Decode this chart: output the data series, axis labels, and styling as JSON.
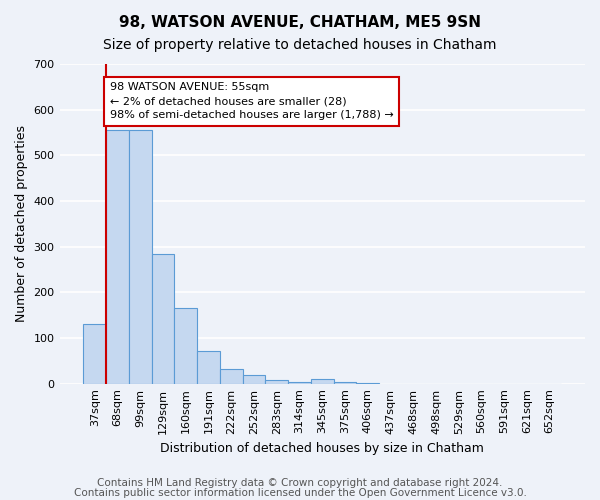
{
  "title": "98, WATSON AVENUE, CHATHAM, ME5 9SN",
  "subtitle": "Size of property relative to detached houses in Chatham",
  "xlabel": "Distribution of detached houses by size in Chatham",
  "ylabel": "Number of detached properties",
  "footer1": "Contains HM Land Registry data © Crown copyright and database right 2024.",
  "footer2": "Contains public sector information licensed under the Open Government Licence v3.0.",
  "bar_labels": [
    "37sqm",
    "68sqm",
    "99sqm",
    "129sqm",
    "160sqm",
    "191sqm",
    "222sqm",
    "252sqm",
    "283sqm",
    "314sqm",
    "345sqm",
    "375sqm",
    "406sqm",
    "437sqm",
    "468sqm",
    "498sqm",
    "529sqm",
    "560sqm",
    "591sqm",
    "621sqm",
    "652sqm"
  ],
  "bar_values": [
    130,
    555,
    555,
    283,
    165,
    72,
    33,
    20,
    8,
    4,
    10,
    4,
    2,
    0,
    0,
    0,
    0,
    0,
    0,
    0,
    0
  ],
  "bar_color": "#c5d8f0",
  "bar_edgecolor": "#5b9bd5",
  "annotation_text": "98 WATSON AVENUE: 55sqm\n← 2% of detached houses are smaller (28)\n98% of semi-detached houses are larger (1,788) →",
  "annotation_box_edgecolor": "#cc0000",
  "annotation_box_facecolor": "#ffffff",
  "vline_x": 0.5,
  "vline_color": "#cc0000",
  "ylim": [
    0,
    700
  ],
  "yticks": [
    0,
    100,
    200,
    300,
    400,
    500,
    600,
    700
  ],
  "background_color": "#eef2f9",
  "grid_color": "#ffffff",
  "title_fontsize": 11,
  "subtitle_fontsize": 10,
  "axis_label_fontsize": 9,
  "tick_fontsize": 8,
  "annotation_fontsize": 8,
  "footer_fontsize": 7.5
}
